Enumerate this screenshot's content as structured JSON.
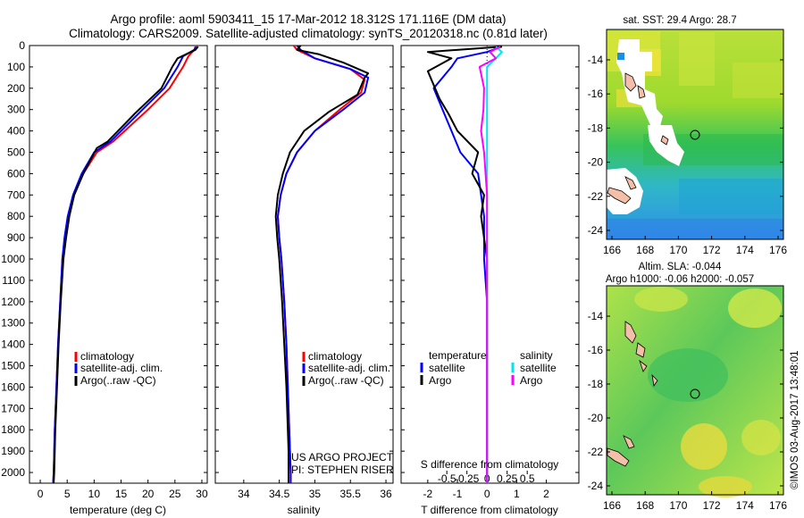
{
  "header": {
    "line1": "Argo profile: aoml 5903411_15 17-Mar-2012 18.312S 171.116E (DM data)",
    "line2": "Climatology: CARS2009. Satellite-adjusted climatology: synTS_20120318.nc (0.81d later)"
  },
  "colors": {
    "climatology": "#ff0000",
    "satellite": "#0000ff",
    "argo": "#000000",
    "sal_satellite": "#00e5ee",
    "sal_argo": "#ff00ff"
  },
  "depth_ticks": [
    "0",
    "100",
    "200",
    "300",
    "400",
    "500",
    "600",
    "700",
    "800",
    "900",
    "1000",
    "1100",
    "1200",
    "1300",
    "1400",
    "1500",
    "1600",
    "1700",
    "1800",
    "1900",
    "2000"
  ],
  "chart_data": [
    {
      "type": "line",
      "id": "temperature",
      "xlabel": "temperature (deg C)",
      "xlim": [
        -2,
        31
      ],
      "ylim": [
        0,
        2050
      ],
      "xticks": [
        0,
        5,
        10,
        15,
        20,
        25,
        30
      ],
      "xtick_labels": [
        "0",
        "5",
        "10",
        "15",
        "20",
        "25",
        "30"
      ],
      "legend": [
        "climatology",
        "satellite-adj. clim.",
        "Argo(..raw -QC)"
      ],
      "series": [
        {
          "name": "climatology",
          "color": "#ff0000",
          "points": [
            [
              28.8,
              5
            ],
            [
              28.6,
              20
            ],
            [
              27.5,
              50
            ],
            [
              26.5,
              100
            ],
            [
              24,
              200
            ],
            [
              20,
              300
            ],
            [
              13.5,
              450
            ],
            [
              10.5,
              500
            ],
            [
              8,
              600
            ],
            [
              6.2,
              700
            ],
            [
              5.2,
              800
            ],
            [
              4.6,
              900
            ],
            [
              4.1,
              1000
            ],
            [
              3.7,
              1200
            ],
            [
              3.3,
              1400
            ],
            [
              3,
              1600
            ],
            [
              2.7,
              1800
            ],
            [
              2.5,
              2000
            ],
            [
              2.4,
              2050
            ]
          ]
        },
        {
          "name": "satellite-adj. clim.",
          "color": "#0000ff",
          "points": [
            [
              29,
              5
            ],
            [
              28.6,
              20
            ],
            [
              26.5,
              50
            ],
            [
              25.5,
              100
            ],
            [
              23,
              200
            ],
            [
              19,
              300
            ],
            [
              13,
              450
            ],
            [
              10,
              500
            ],
            [
              7.7,
              600
            ],
            [
              6.1,
              700
            ],
            [
              5.1,
              800
            ],
            [
              4.5,
              900
            ],
            [
              4.1,
              1000
            ],
            [
              3.7,
              1200
            ],
            [
              3.3,
              1400
            ],
            [
              3,
              1600
            ],
            [
              2.7,
              1800
            ],
            [
              2.5,
              2000
            ],
            [
              2.4,
              2050
            ]
          ]
        },
        {
          "name": "Argo(..raw -QC)",
          "color": "#000000",
          "points": [
            [
              29.3,
              5
            ],
            [
              28.8,
              20
            ],
            [
              25.5,
              60
            ],
            [
              24.5,
              100
            ],
            [
              22.5,
              200
            ],
            [
              17.5,
              320
            ],
            [
              16,
              360
            ],
            [
              12.5,
              450
            ],
            [
              10.5,
              480
            ],
            [
              8,
              600
            ],
            [
              6.3,
              700
            ],
            [
              5.4,
              800
            ],
            [
              4.8,
              900
            ],
            [
              4.3,
              1000
            ],
            [
              3.8,
              1200
            ],
            [
              3.4,
              1400
            ],
            [
              3.1,
              1600
            ],
            [
              2.8,
              1800
            ],
            [
              2.6,
              2000
            ],
            [
              2.5,
              2050
            ]
          ]
        }
      ]
    },
    {
      "type": "line",
      "id": "salinity",
      "xlabel": "salinity",
      "xlim": [
        33.6,
        36.1
      ],
      "ylim": [
        0,
        2050
      ],
      "xticks": [
        34,
        34.5,
        35,
        35.5,
        36
      ],
      "xtick_labels": [
        "34",
        "34.5",
        "35",
        "35.5",
        "36"
      ],
      "legend": [
        "climatology",
        "satellite-adj. clim.",
        "Argo(..raw -QC)"
      ],
      "annotation": [
        "US ARGO PROJECT",
        "PI: STEPHEN RISER"
      ],
      "series": [
        {
          "name": "climatology",
          "color": "#ff0000",
          "points": [
            [
              34.7,
              0
            ],
            [
              34.75,
              20
            ],
            [
              35,
              60
            ],
            [
              35.5,
              110
            ],
            [
              35.7,
              160
            ],
            [
              35.65,
              220
            ],
            [
              35.35,
              300
            ],
            [
              35,
              400
            ],
            [
              34.75,
              500
            ],
            [
              34.6,
              600
            ],
            [
              34.52,
              700
            ],
            [
              34.48,
              800
            ],
            [
              34.5,
              900
            ],
            [
              34.53,
              1000
            ],
            [
              34.57,
              1200
            ],
            [
              34.6,
              1400
            ],
            [
              34.62,
              1600
            ],
            [
              34.64,
              1800
            ],
            [
              34.66,
              2000
            ],
            [
              34.66,
              2050
            ]
          ]
        },
        {
          "name": "satellite-adj. clim.",
          "color": "#0000ff",
          "points": [
            [
              34.75,
              0
            ],
            [
              34.8,
              20
            ],
            [
              35,
              60
            ],
            [
              35.5,
              110
            ],
            [
              35.75,
              150
            ],
            [
              35.7,
              220
            ],
            [
              35.4,
              300
            ],
            [
              35,
              400
            ],
            [
              34.75,
              500
            ],
            [
              34.6,
              600
            ],
            [
              34.52,
              700
            ],
            [
              34.48,
              800
            ],
            [
              34.5,
              900
            ],
            [
              34.53,
              1000
            ],
            [
              34.57,
              1200
            ],
            [
              34.6,
              1400
            ],
            [
              34.62,
              1600
            ],
            [
              34.64,
              1800
            ],
            [
              34.66,
              2000
            ],
            [
              34.66,
              2050
            ]
          ]
        },
        {
          "name": "Argo(..raw -QC)",
          "color": "#000000",
          "points": [
            [
              34.8,
              0
            ],
            [
              34.75,
              20
            ],
            [
              35.05,
              40
            ],
            [
              35.4,
              80
            ],
            [
              35.75,
              130
            ],
            [
              35.7,
              150
            ],
            [
              35.6,
              230
            ],
            [
              35.3,
              290
            ],
            [
              35.2,
              310
            ],
            [
              34.85,
              400
            ],
            [
              34.65,
              500
            ],
            [
              34.55,
              600
            ],
            [
              34.48,
              700
            ],
            [
              34.45,
              800
            ],
            [
              34.47,
              900
            ],
            [
              34.5,
              1000
            ],
            [
              34.54,
              1200
            ],
            [
              34.57,
              1400
            ],
            [
              34.6,
              1600
            ],
            [
              34.62,
              1800
            ],
            [
              34.63,
              1900
            ],
            [
              34.63,
              2050
            ]
          ]
        }
      ]
    },
    {
      "type": "line",
      "id": "difference",
      "xlabel": "T difference from climatology",
      "xlabel2": "S difference from climatology",
      "xlim": [
        -2.9,
        3.1
      ],
      "ylim": [
        0,
        2050
      ],
      "xticks": [
        -2,
        -1,
        0,
        1,
        2
      ],
      "xtick_labels": [
        "-2",
        "-1",
        "0",
        "1",
        "2"
      ],
      "sticks": [
        -0.5,
        -0.25,
        0,
        0.25,
        0.5
      ],
      "stick_labels": [
        "-0.5",
        "-0.25",
        "0",
        "0.25",
        "0.5"
      ],
      "legend_headers": [
        "temperature",
        "salinity"
      ],
      "legend": [
        "satellite",
        "Argo",
        "satellite",
        "Argo"
      ],
      "series": [
        {
          "name": "temperature satellite",
          "color": "#0000ff",
          "points": [
            [
              0.5,
              5
            ],
            [
              0,
              30
            ],
            [
              -1,
              60
            ],
            [
              -1.2,
              100
            ],
            [
              -1.8,
              200
            ],
            [
              -1.5,
              300
            ],
            [
              -1.2,
              400
            ],
            [
              -0.9,
              500
            ],
            [
              -0.3,
              600
            ],
            [
              -0.2,
              700
            ],
            [
              -0.1,
              800
            ],
            [
              -0.1,
              1000
            ],
            [
              0,
              1200
            ],
            [
              0,
              1600
            ],
            [
              0,
              2050
            ]
          ]
        },
        {
          "name": "temperature Argo",
          "color": "#000000",
          "points": [
            [
              0.5,
              5
            ],
            [
              -2,
              30
            ],
            [
              -1.2,
              60
            ],
            [
              -2,
              120
            ],
            [
              -1.6,
              250
            ],
            [
              -1.3,
              320
            ],
            [
              -1,
              400
            ],
            [
              -0.3,
              500
            ],
            [
              -0.5,
              600
            ],
            [
              -0.1,
              700
            ],
            [
              -0.2,
              800
            ],
            [
              0,
              1000
            ],
            [
              0,
              1200
            ],
            [
              0,
              1600
            ],
            [
              0,
              2050
            ]
          ]
        },
        {
          "name": "salinity satellite",
          "color": "#00e5ee",
          "points": [
            [
              0.3,
              5
            ],
            [
              0.5,
              30
            ],
            [
              0.3,
              60
            ],
            [
              0,
              100
            ],
            [
              0,
              200
            ],
            [
              0,
              300
            ],
            [
              0,
              500
            ],
            [
              0,
              800
            ],
            [
              0,
              1200
            ],
            [
              0,
              1600
            ],
            [
              0,
              2050
            ]
          ]
        },
        {
          "name": "salinity Argo",
          "color": "#ff00ff",
          "points": [
            [
              0.45,
              5
            ],
            [
              0.1,
              30
            ],
            [
              0.3,
              60
            ],
            [
              -0.25,
              100
            ],
            [
              -0.1,
              200
            ],
            [
              -0.12,
              300
            ],
            [
              -0.2,
              400
            ],
            [
              -0.1,
              500
            ],
            [
              0,
              700
            ],
            [
              0,
              900
            ],
            [
              0,
              1200
            ],
            [
              0,
              1600
            ],
            [
              0,
              2050
            ]
          ]
        }
      ]
    }
  ],
  "maps": [
    {
      "title": "sat. SST: 29.4 Argo: 28.7",
      "xticks": [
        "166",
        "168",
        "170",
        "172",
        "174",
        "176"
      ],
      "yticks": [
        "-14",
        "-16",
        "-18",
        "-20",
        "-22",
        "-24"
      ]
    },
    {
      "title1": "Altim. SLA: -0.044",
      "title2": "Argo h1000: -0.06 h2000: -0.057",
      "xticks": [
        "166",
        "168",
        "170",
        "172",
        "174",
        "176"
      ],
      "yticks": [
        "-14",
        "-16",
        "-18",
        "-20",
        "-22",
        "-24"
      ]
    }
  ],
  "credit": "©IMOS 03-Aug-2017 13:48:01"
}
